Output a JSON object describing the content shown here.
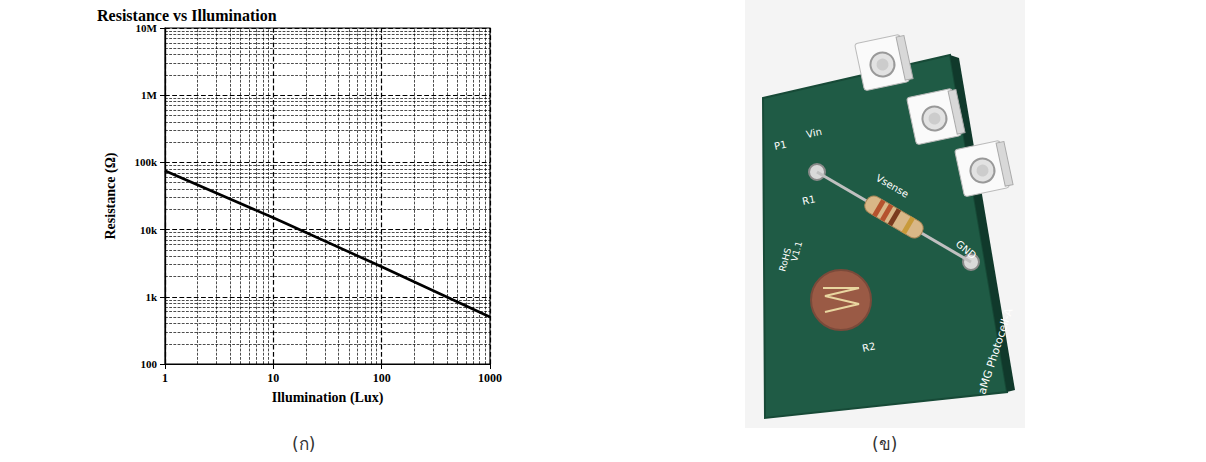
{
  "chart_data": {
    "type": "line",
    "title": "Resistance vs Illumination",
    "x_label": "Illumination (Lux)",
    "y_label": "Resistance (Ω)",
    "x": [
      1,
      10,
      100,
      1000
    ],
    "values": [
      75000,
      15000,
      2800,
      500
    ],
    "color": "#000000",
    "log": true,
    "grid": true,
    "xlim": [
      1,
      1000
    ],
    "xticks": [
      1,
      10,
      100,
      1000
    ],
    "ylim": [
      100,
      10000000
    ],
    "yticks": [
      {
        "value": 100,
        "label": "100"
      },
      {
        "value": 1000,
        "label": "1k"
      },
      {
        "value": 10000,
        "label": "10k"
      },
      {
        "value": 100000,
        "label": "100k"
      },
      {
        "value": 1000000,
        "label": "1M"
      },
      {
        "value": 10000000,
        "label": "10M"
      }
    ]
  },
  "captions": {
    "chart": "(ก)",
    "photo": "(ข)"
  },
  "photo_board": {
    "texts": {
      "p1": "P1",
      "vin": "Vin",
      "r1": "R1",
      "vsense": "Vsense",
      "rohs": "RoHS",
      "version": "V1.1",
      "gnd": "GND",
      "r2": "R2",
      "name": "aMG Photocell-A"
    }
  }
}
